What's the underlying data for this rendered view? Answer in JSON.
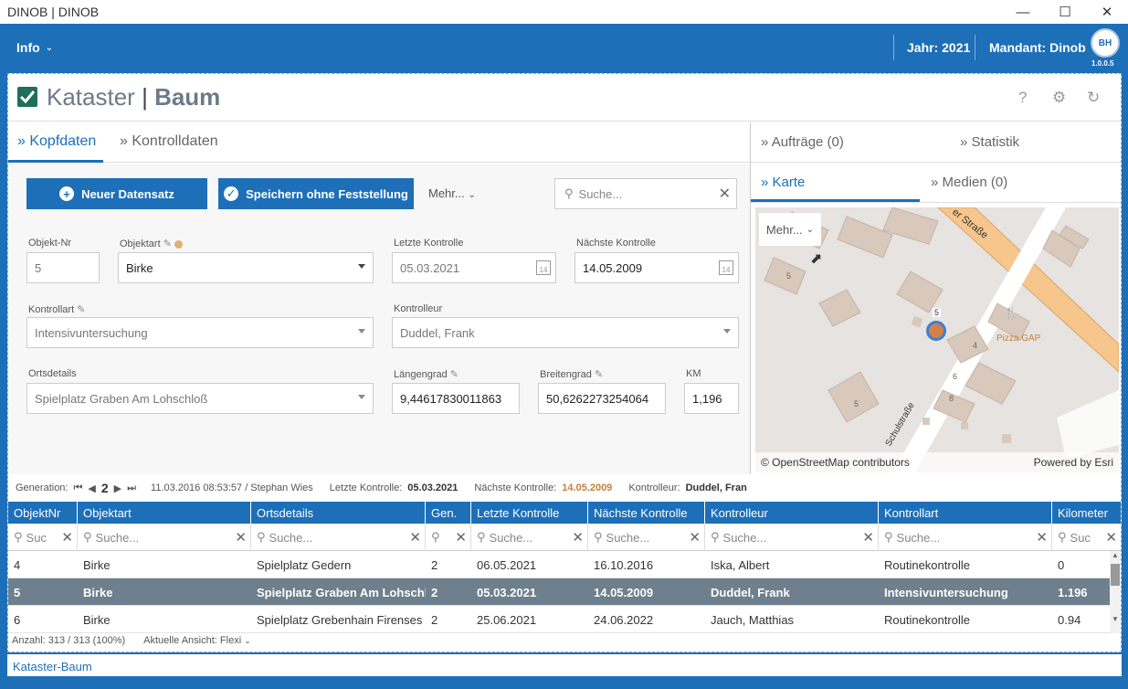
{
  "window": {
    "title": "DINOB | DINOB"
  },
  "header": {
    "menu_label": "Info",
    "jahr": "Jahr: 2021",
    "mandant": "Mandant: Dinob",
    "avatar": "BH",
    "version": "1.0.0.5"
  },
  "page": {
    "title_a": "Kataster",
    "title_sep": "|",
    "title_b": "Baum"
  },
  "tabs": {
    "kopfdaten": "Kopfdaten",
    "kontrolldaten": "Kontrolldaten"
  },
  "toolbar": {
    "new_label": "Neuer Datensatz",
    "save_label": "Speichern ohne Feststellung",
    "more_label": "Mehr...",
    "search_placeholder": "Suche..."
  },
  "form": {
    "objekt_nr": {
      "label": "Objekt-Nr",
      "value": "5"
    },
    "objektart": {
      "label": "Objektart",
      "value": "Birke"
    },
    "letzte_kontrolle": {
      "label": "Letzte Kontrolle",
      "value": "05.03.2021"
    },
    "naechste_kontrolle": {
      "label": "Nächste Kontrolle",
      "value": "14.05.2009"
    },
    "kontrollart": {
      "label": "Kontrollart",
      "value": "Intensivuntersuchung"
    },
    "kontrolleur": {
      "label": "Kontrolleur",
      "value": "Duddel, Frank"
    },
    "ortsdetails": {
      "label": "Ortsdetails",
      "value": "Spielplatz Graben  Am Lohschloß"
    },
    "laengengrad": {
      "label": "Längengrad",
      "value": "9,44617830011863"
    },
    "breitengrad": {
      "label": "Breitengrad",
      "value": "50,6262273254064"
    },
    "km": {
      "label": "KM",
      "value": "1,196"
    },
    "calendar_day": "14"
  },
  "status": {
    "generation_label": "Generation:",
    "generation": "2",
    "created": "11.03.2016 08:53:57 / Stephan Wies",
    "letzte_label": "Letzte Kontrolle:",
    "letzte": "05.03.2021",
    "naechste_label": "Nächste Kontrolle:",
    "naechste": "14.05.2009",
    "kontrolleur_label": "Kontrolleur:",
    "kontrolleur": "Duddel, Fran"
  },
  "right": {
    "auftraege": "Aufträge (0)",
    "statistik": "Statistik",
    "karte": "Karte",
    "medien": "Medien (0)",
    "map_more": "Mehr...",
    "attribution": "© OpenStreetMap contributors",
    "powered": "Powered by Esri",
    "street_a": "er Straße",
    "street_b": "Schulstraße",
    "poi": "Pizza GAP",
    "marker_label": "5",
    "housenumbers": [
      "5",
      "4",
      "6",
      "8",
      "5"
    ]
  },
  "grid": {
    "columns": [
      "ObjektNr",
      "Objektart",
      "Ortsdetails",
      "Gen.",
      "Letzte Kontrolle",
      "Nächste Kontrolle",
      "Kontrolleur",
      "Kontrollart",
      "Kilometer"
    ],
    "filter_short": "Suc",
    "filter_placeholder": "Suche...",
    "rows": [
      [
        "4",
        "Birke",
        "Spielplatz Gedern",
        "2",
        "06.05.2021",
        "16.10.2016",
        "Iska, Albert",
        "Routinekontrolle",
        "0"
      ],
      [
        "5",
        "Birke",
        "Spielplatz Graben  Am Lohschlo",
        "2",
        "05.03.2021",
        "14.05.2009",
        "Duddel, Frank",
        "Intensivuntersuchung",
        "1.196"
      ],
      [
        "6",
        "Birke",
        "Spielplatz Grebenhain  Firenses",
        "2",
        "25.06.2021",
        "24.06.2022",
        "Jauch, Matthias",
        "Routinekontrolle",
        "0.94"
      ]
    ],
    "count": "Anzahl: 313 / 313 (100%)",
    "view": "Aktuelle Ansicht: Flexi"
  },
  "footer_tab": "Kataster-Baum",
  "colors": {
    "primary": "#1d6fb8",
    "selected_row": "#6e7f8e",
    "accent_orange": "#c8813a"
  }
}
